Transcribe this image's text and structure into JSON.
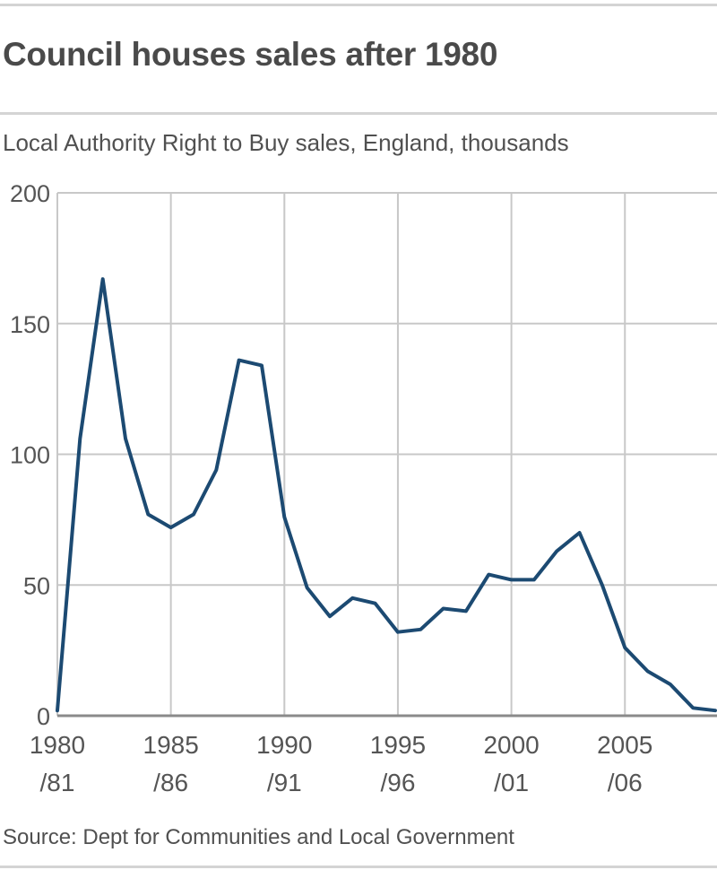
{
  "header": {
    "title": "Council houses sales after 1980",
    "subtitle": "Local Authority Right to Buy sales, England, thousands"
  },
  "footer": {
    "source": "Source: Dept for Communities and Local Government"
  },
  "colors": {
    "line": "#1c4a72",
    "grid": "#c8c8c8",
    "axis": "#8a8a8a"
  },
  "chart_data": {
    "type": "line",
    "title": "Council houses sales after 1980",
    "subtitle": "Local Authority Right to Buy sales, England, thousands",
    "xlabel": "",
    "ylabel": "",
    "ylim": [
      0,
      200
    ],
    "yticks": [
      0,
      50,
      100,
      150,
      200
    ],
    "xtick_labels": [
      {
        "top": "1980",
        "bottom": "/81"
      },
      {
        "top": "1985",
        "bottom": "/86"
      },
      {
        "top": "1990",
        "bottom": "/91"
      },
      {
        "top": "1995",
        "bottom": "/96"
      },
      {
        "top": "2000",
        "bottom": "/01"
      },
      {
        "top": "2005",
        "bottom": "/06"
      }
    ],
    "grid": true,
    "legend": null,
    "x": [
      "1980/81",
      "1981/82",
      "1982/83",
      "1983/84",
      "1984/85",
      "1985/86",
      "1986/87",
      "1987/88",
      "1988/89",
      "1989/90",
      "1990/91",
      "1991/92",
      "1992/93",
      "1993/94",
      "1994/95",
      "1995/96",
      "1996/97",
      "1997/98",
      "1998/99",
      "1999/00",
      "2000/01",
      "2001/02",
      "2002/03",
      "2003/04",
      "2004/05",
      "2005/06",
      "2006/07",
      "2007/08",
      "2008/09",
      "2009/10"
    ],
    "series": [
      {
        "name": "Right to Buy sales (thousands)",
        "values": [
          2,
          106,
          167,
          106,
          77,
          72,
          77,
          94,
          136,
          134,
          76,
          49,
          38,
          45,
          43,
          32,
          33,
          41,
          40,
          54,
          52,
          52,
          63,
          70,
          50,
          26,
          17,
          12,
          3,
          2
        ]
      }
    ],
    "source": "Source: Dept for Communities and Local Government"
  }
}
